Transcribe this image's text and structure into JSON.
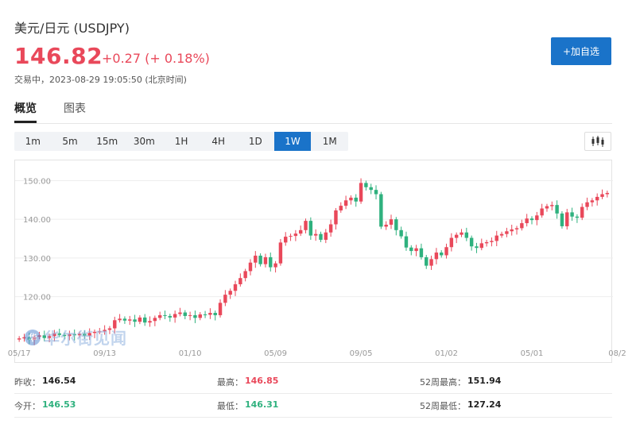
{
  "header": {
    "title": "美元/日元 (USDJPY)",
    "price": "146.82",
    "change": "+0.27 (+ 0.18%)",
    "status": "交易中，2023-08-29 19:05:50 (北京时间)",
    "add_button": "+加自选"
  },
  "tabs": [
    {
      "label": "概览",
      "active": true
    },
    {
      "label": "图表",
      "active": false
    }
  ],
  "periods": [
    {
      "label": "1m",
      "active": false
    },
    {
      "label": "5m",
      "active": false
    },
    {
      "label": "15m",
      "active": false
    },
    {
      "label": "30m",
      "active": false
    },
    {
      "label": "1H",
      "active": false
    },
    {
      "label": "4H",
      "active": false
    },
    {
      "label": "1D",
      "active": false
    },
    {
      "label": "1W",
      "active": true
    },
    {
      "label": "1M",
      "active": false
    }
  ],
  "chart_type_icon": "candlestick-icon",
  "watermark": {
    "logo": "华",
    "text": "华尔街见闻"
  },
  "colors": {
    "up": "#e9485a",
    "down": "#2fb17e",
    "accent": "#1a73c9"
  },
  "chart_data": {
    "type": "candlestick",
    "ylim": [
      108,
      154
    ],
    "y_ticks": [
      "150.00",
      "140.00",
      "130.00",
      "120.00"
    ],
    "y_tick_values": [
      150,
      140,
      130,
      120
    ],
    "x_ticks": [
      "05/17",
      "09/13",
      "01/10",
      "05/09",
      "09/05",
      "01/02",
      "05/01",
      "08/2"
    ],
    "x_tick_index": [
      0,
      17,
      34,
      51,
      68,
      85,
      102,
      119
    ],
    "closes": [
      109.2,
      109.5,
      108.8,
      109.6,
      110.0,
      109.3,
      109.8,
      110.5,
      110.1,
      109.8,
      110.3,
      110.0,
      110.4,
      109.9,
      110.6,
      110.9,
      111.0,
      111.4,
      111.8,
      113.9,
      114.3,
      113.8,
      114.1,
      113.5,
      114.6,
      113.3,
      113.7,
      114.5,
      115.2,
      115.0,
      114.6,
      115.5,
      115.9,
      115.0,
      115.2,
      114.5,
      115.4,
      115.3,
      115.8,
      115.2,
      118.4,
      120.5,
      121.5,
      123.2,
      124.8,
      126.6,
      128.8,
      130.6,
      128.4,
      130.2,
      127.6,
      128.6,
      134.0,
      135.5,
      135.7,
      136.3,
      137.2,
      139.6,
      135.8,
      136.2,
      134.7,
      136.6,
      138.7,
      142.3,
      143.5,
      144.9,
      145.6,
      144.6,
      149.4,
      148.3,
      147.6,
      146.5,
      138.1,
      138.6,
      140.0,
      137.2,
      135.6,
      132.7,
      131.8,
      132.5,
      130.2,
      128.0,
      129.7,
      131.4,
      130.7,
      132.8,
      135.2,
      136.0,
      136.6,
      135.2,
      133.0,
      132.6,
      133.8,
      134.1,
      134.4,
      135.8,
      136.2,
      136.9,
      137.4,
      137.7,
      139.0,
      140.2,
      139.8,
      141.0,
      142.8,
      143.4,
      143.7,
      141.5,
      138.2,
      141.8,
      140.7,
      140.4,
      143.2,
      144.4,
      144.9,
      145.8,
      146.5,
      146.82
    ],
    "series_up_color": "#e9485a",
    "series_down_color": "#2fb17e"
  },
  "stats": {
    "prev_close_label": "昨收：",
    "prev_close": "146.54",
    "high_label": "最高：",
    "high": "146.85",
    "wk52_high_label": "52周最高：",
    "wk52_high": "151.94",
    "open_label": "今开：",
    "open": "146.53",
    "low_label": "最低：",
    "low": "146.31",
    "wk52_low_label": "52周最低：",
    "wk52_low": "127.24"
  }
}
